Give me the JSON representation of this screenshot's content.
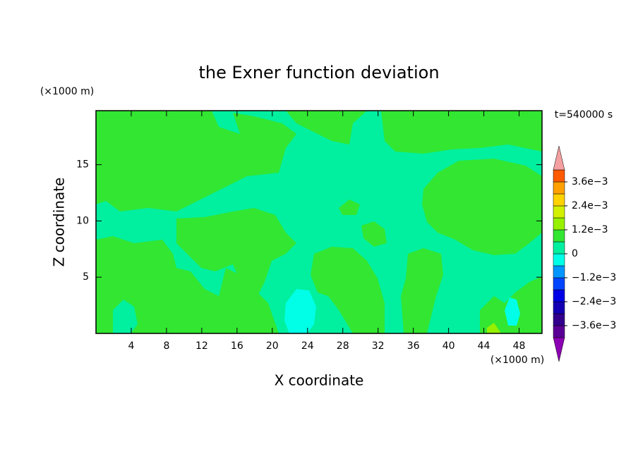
{
  "chart_data": {
    "type": "contour",
    "title": "the Exner function deviation",
    "xlabel": "X coordinate",
    "ylabel": "Z coordinate",
    "x_unit": "(×1000 m)",
    "y_unit": "(×1000 m)",
    "time_label": "t=540000 s",
    "xlim": [
      0,
      50.6
    ],
    "ylim": [
      0,
      19.8
    ],
    "xticks": [
      4,
      8,
      12,
      16,
      20,
      24,
      28,
      32,
      36,
      40,
      44,
      48
    ],
    "yticks": [
      5,
      10,
      15
    ],
    "levels": [
      -0.0042,
      -0.0036,
      -0.003,
      -0.0024,
      -0.0018,
      -0.0012,
      -0.0006,
      0,
      0.0006,
      0.0012,
      0.0018,
      0.0024,
      0.003,
      0.0036,
      0.0042
    ],
    "colors": [
      "#5a0096",
      "#32008c",
      "#1400b4",
      "#0000e6",
      "#0046ff",
      "#0096ff",
      "#00ffe6",
      "#00f0a0",
      "#32e632",
      "#96f000",
      "#d2f000",
      "#ffd200",
      "#ffa000",
      "#ff5a00",
      "#ff2828"
    ],
    "extend_colors": {
      "over": "#f4a0a0",
      "under": "#8c00b4"
    },
    "colorbar_ticks": [
      {
        "value": 0.0036,
        "label": "3.6e−3"
      },
      {
        "value": 0.0024,
        "label": "2.4e−3"
      },
      {
        "value": 0.0012,
        "label": "1.2e−3"
      },
      0,
      {
        "value": -0.0012,
        "label": "−1.2e−3"
      },
      {
        "value": -0.0024,
        "label": "−2.4e−3"
      },
      {
        "value": -0.0036,
        "label": "−3.6e−3"
      }
    ]
  }
}
